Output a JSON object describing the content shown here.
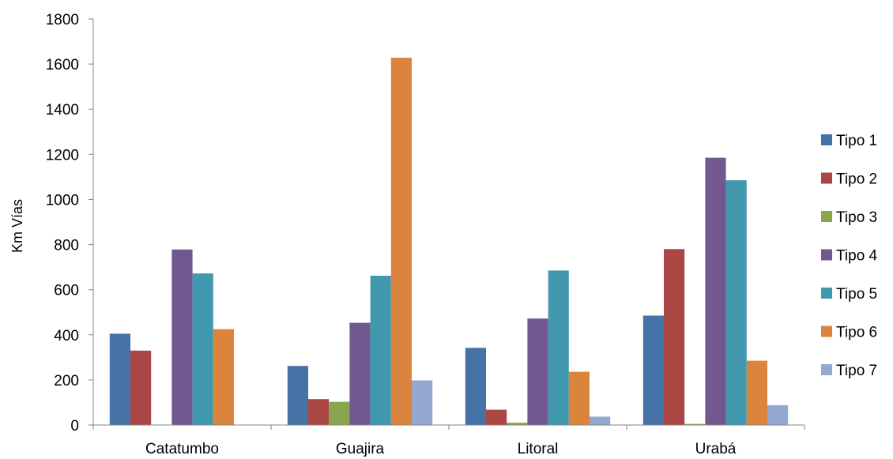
{
  "chart_data": {
    "type": "bar",
    "title": "",
    "xlabel": "",
    "ylabel": "Km Vías",
    "ylim": [
      0,
      1800
    ],
    "yticks": [
      0,
      200,
      400,
      600,
      800,
      1000,
      1200,
      1400,
      1600,
      1800
    ],
    "ytick_labels": [
      "0",
      "200",
      "400",
      "600",
      "800",
      "1000",
      "1200",
      "1400",
      "1600",
      "1800"
    ],
    "grid": false,
    "legend_position": "right",
    "categories": [
      "Catatumbo",
      "Guajira",
      "Litoral",
      "Urabá"
    ],
    "series": [
      {
        "name": "Tipo 1",
        "color": "#4572a7",
        "values": [
          405,
          262,
          342,
          485
        ]
      },
      {
        "name": "Tipo 2",
        "color": "#aa4643",
        "values": [
          330,
          115,
          68,
          780
        ]
      },
      {
        "name": "Tipo 3",
        "color": "#89a54e",
        "values": [
          0,
          103,
          10,
          5
        ]
      },
      {
        "name": "Tipo 4",
        "color": "#71588f",
        "values": [
          778,
          453,
          472,
          1185
        ]
      },
      {
        "name": "Tipo 5",
        "color": "#4198af",
        "values": [
          672,
          662,
          685,
          1085
        ]
      },
      {
        "name": "Tipo 6",
        "color": "#db843d",
        "values": [
          425,
          1628,
          236,
          285
        ]
      },
      {
        "name": "Tipo 7",
        "color": "#93a9cf",
        "values": [
          0,
          198,
          37,
          88
        ]
      }
    ]
  }
}
